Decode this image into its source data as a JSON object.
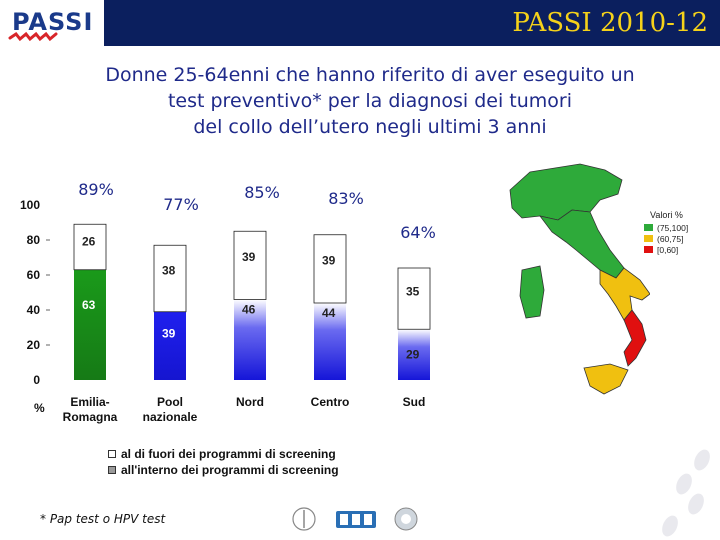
{
  "header": {
    "title": "PASSI 2010-12",
    "logo_text": "PASSI"
  },
  "title_lines": [
    "Donne 25-64enni che hanno riferito di aver eseguito un",
    "test preventivo* per la diagnosi dei tumori",
    "del collo dell’utero negli ultimi 3 anni"
  ],
  "chart_data": {
    "type": "bar",
    "stacked": true,
    "categories": [
      "Emilia-\nRomagna",
      "Pool\nnazionale",
      "Nord",
      "Centro",
      "Sud"
    ],
    "totals": [
      89,
      77,
      85,
      83,
      64
    ],
    "total_labels": [
      "89%",
      "77%",
      "85%",
      "83%",
      "64%"
    ],
    "series": [
      {
        "name": "all'interno dei programmi di screening",
        "values": [
          63,
          39,
          46,
          44,
          29
        ]
      },
      {
        "name": "al di fuori dei programmi di screening",
        "values": [
          26,
          38,
          39,
          39,
          35
        ]
      }
    ],
    "inside_colors": [
      "#1a8a1a",
      "#1919e6",
      "#1a1ad8",
      "#1a1ad8",
      "#1a1ad8"
    ],
    "ylim": [
      0,
      100
    ],
    "yticks": [
      "0",
      "20",
      "40",
      "60",
      "80",
      "100"
    ],
    "ytick_values": [
      0,
      20,
      40,
      60,
      80,
      100
    ],
    "ylabel": "%",
    "legend": {
      "outside": "al di fuori dei programmi di screening",
      "inside": "all'interno dei programmi di screening"
    }
  },
  "map": {
    "legend_title": "Valori %",
    "classes": [
      {
        "label": "(75,100]",
        "color": "#2eaa3a"
      },
      {
        "label": "(60,75]",
        "color": "#f0c010"
      },
      {
        "label": "[0,60]",
        "color": "#e01010"
      }
    ]
  },
  "footnote": "* Pap test o HPV test",
  "colors": {
    "navy": "#0b1f5e",
    "yellow": "#f5d21a",
    "title_blue": "#1f2a8a"
  }
}
